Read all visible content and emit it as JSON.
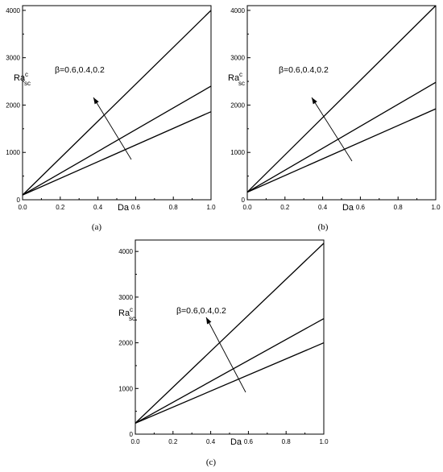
{
  "chart_data": [
    {
      "type": "line",
      "caption": "(a)",
      "xlabel": "Da",
      "ylabel": "Ra",
      "ylabel_sup": "c",
      "ylabel_sub": "sc",
      "annotation": "β=0.6,0.4,0.2",
      "xlim": [
        0,
        1
      ],
      "ylim": [
        0,
        4100
      ],
      "x_ticks": [
        "0.0",
        "0.2",
        "0.4",
        "0.6",
        "0.8",
        "1.0"
      ],
      "y_ticks": [
        "0",
        "1000",
        "2000",
        "3000",
        "4000"
      ],
      "series": [
        {
          "x": [
            0,
            1
          ],
          "values": [
            100,
            4000
          ]
        },
        {
          "x": [
            0,
            1
          ],
          "values": [
            100,
            2400
          ]
        },
        {
          "x": [
            0,
            1
          ],
          "values": [
            100,
            1860
          ]
        }
      ]
    },
    {
      "type": "line",
      "caption": "(b)",
      "xlabel": "Da",
      "ylabel": "Ra",
      "ylabel_sup": "c",
      "ylabel_sub": "sc",
      "annotation": "β=0.6,0.4,0.2",
      "xlim": [
        0,
        1
      ],
      "ylim": [
        0,
        4100
      ],
      "x_ticks": [
        "0.0",
        "0.2",
        "0.4",
        "0.6",
        "0.8",
        "1.0"
      ],
      "y_ticks": [
        "0",
        "1000",
        "2000",
        "3000",
        "4000"
      ],
      "series": [
        {
          "x": [
            0,
            1
          ],
          "values": [
            160,
            4100
          ]
        },
        {
          "x": [
            0,
            1
          ],
          "values": [
            160,
            2480
          ]
        },
        {
          "x": [
            0,
            1
          ],
          "values": [
            160,
            1920
          ]
        }
      ]
    },
    {
      "type": "line",
      "caption": "(c)",
      "xlabel": "Da",
      "ylabel": "Ra",
      "ylabel_sup": "c",
      "ylabel_sub": "sc",
      "annotation": "β=0.6,0.4,0.2",
      "xlim": [
        0,
        1
      ],
      "ylim": [
        0,
        4250
      ],
      "x_ticks": [
        "0.0",
        "0.2",
        "0.4",
        "0.6",
        "0.8",
        "1.0"
      ],
      "y_ticks": [
        "0",
        "1000",
        "2000",
        "3000",
        "4000"
      ],
      "series": [
        {
          "x": [
            0,
            1
          ],
          "values": [
            240,
            4180
          ]
        },
        {
          "x": [
            0,
            1
          ],
          "values": [
            240,
            2530
          ]
        },
        {
          "x": [
            0,
            1
          ],
          "values": [
            240,
            2000
          ]
        }
      ]
    }
  ]
}
